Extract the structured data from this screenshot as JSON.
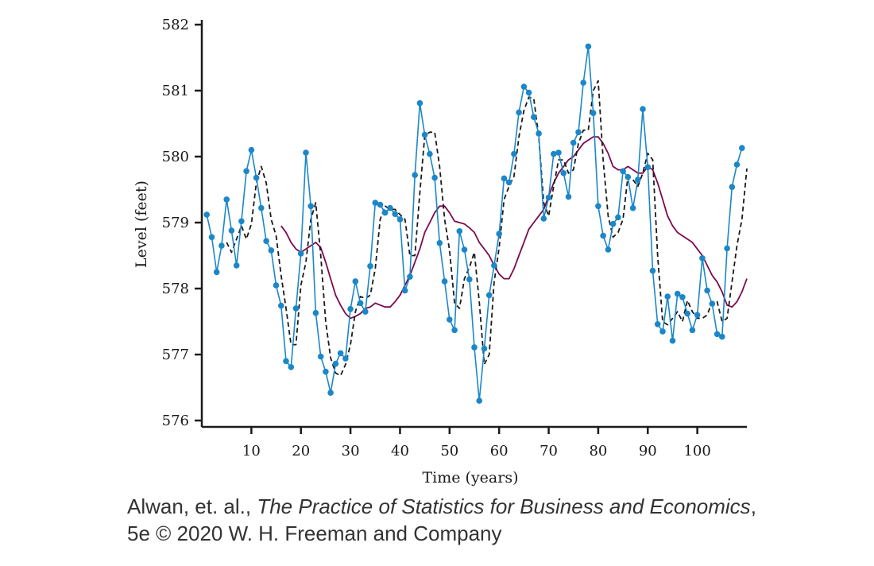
{
  "chart_data": {
    "type": "line",
    "title": "",
    "xlabel": "Time (years)",
    "ylabel": "Level (feet)",
    "xlim": [
      0,
      110
    ],
    "ylim": [
      576,
      582
    ],
    "xticks": [
      10,
      20,
      30,
      40,
      50,
      60,
      70,
      80,
      90,
      100
    ],
    "yticks": [
      576,
      577,
      578,
      579,
      580,
      581,
      582
    ],
    "grid": false,
    "legend": "none",
    "series": [
      {
        "style": "solid-markers",
        "color": "#1b87c9",
        "x": [
          1,
          2,
          3,
          4,
          5,
          6,
          7,
          8,
          9,
          10,
          11,
          12,
          13,
          14,
          15,
          16,
          17,
          18,
          19,
          20,
          21,
          22,
          23,
          24,
          25,
          26,
          27,
          28,
          29,
          30,
          31,
          32,
          33,
          34,
          35,
          36,
          37,
          38,
          39,
          40,
          41,
          42,
          43,
          44,
          45,
          46,
          47,
          48,
          49,
          50,
          51,
          52,
          53,
          54,
          55,
          56,
          57,
          58,
          59,
          60,
          61,
          62,
          63,
          64,
          65,
          66,
          67,
          68,
          69,
          70,
          71,
          72,
          73,
          74,
          75,
          76,
          77,
          78,
          79,
          80,
          81,
          82,
          83,
          84,
          85,
          86,
          87,
          88,
          89,
          90,
          91,
          92,
          93,
          94,
          95,
          96,
          97,
          98,
          99,
          100,
          101,
          102,
          103,
          104,
          105,
          106,
          107,
          108,
          109
        ],
        "y": [
          579.12,
          578.78,
          578.25,
          578.65,
          579.35,
          578.88,
          578.35,
          579.02,
          579.78,
          580.1,
          579.68,
          579.22,
          578.72,
          578.58,
          578.05,
          577.74,
          576.9,
          576.81,
          577.7,
          578.53,
          580.06,
          579.25,
          577.63,
          576.97,
          576.74,
          576.42,
          576.86,
          577.02,
          576.94,
          577.69,
          578.11,
          577.78,
          577.65,
          578.34,
          579.3,
          579.27,
          579.15,
          579.22,
          579.13,
          579.05,
          577.97,
          578.18,
          579.72,
          580.81,
          580.33,
          580.04,
          579.68,
          578.69,
          578.11,
          577.53,
          577.37,
          578.87,
          578.59,
          578.14,
          577.11,
          576.3,
          577.09,
          577.9,
          578.35,
          578.83,
          579.67,
          579.61,
          580.04,
          580.67,
          581.06,
          580.97,
          580.6,
          580.35,
          579.06,
          579.38,
          580.04,
          580.06,
          579.75,
          579.39,
          580.21,
          580.37,
          581.12,
          581.67,
          580.66,
          579.25,
          578.8,
          578.59,
          578.98,
          579.08,
          579.78,
          579.69,
          579.22,
          579.65,
          580.72,
          579.84,
          578.27,
          577.46,
          577.35,
          577.88,
          577.21,
          577.92,
          577.87,
          577.62,
          577.37,
          577.6,
          578.46,
          577.97,
          577.77,
          577.31,
          577.27,
          578.61,
          579.54,
          579.88,
          580.13
        ]
      },
      {
        "style": "dashed",
        "color": "#1a1a1a",
        "x": [
          5,
          6,
          7,
          8,
          9,
          10,
          11,
          12,
          13,
          14,
          15,
          16,
          17,
          18,
          19,
          20,
          21,
          22,
          23,
          24,
          25,
          26,
          27,
          28,
          29,
          30,
          31,
          32,
          33,
          34,
          35,
          36,
          37,
          38,
          39,
          40,
          41,
          42,
          43,
          44,
          45,
          46,
          47,
          48,
          49,
          50,
          51,
          52,
          53,
          54,
          55,
          56,
          57,
          58,
          59,
          60,
          61,
          62,
          63,
          64,
          65,
          66,
          67,
          68,
          69,
          70,
          71,
          72,
          73,
          74,
          75,
          76,
          77,
          78,
          79,
          80,
          81,
          82,
          83,
          84,
          85,
          86,
          87,
          88,
          89,
          90,
          91,
          92,
          93,
          94,
          95,
          96,
          97,
          98,
          99,
          100,
          101,
          102,
          103,
          104,
          105,
          106,
          107,
          108,
          109,
          110
        ],
        "y": [
          578.7,
          578.55,
          578.75,
          578.95,
          578.75,
          578.98,
          579.6,
          579.85,
          579.6,
          579.05,
          578.8,
          578.2,
          577.7,
          577.15,
          577.15,
          578.05,
          578.4,
          579.05,
          579.3,
          578.5,
          577.5,
          576.95,
          576.72,
          576.68,
          576.85,
          577.15,
          577.65,
          577.88,
          577.85,
          577.9,
          578.3,
          579.05,
          579.25,
          579.2,
          579.2,
          579.12,
          579.05,
          578.5,
          578.5,
          579.45,
          580.32,
          580.37,
          580.37,
          579.85,
          579.05,
          578.58,
          577.78,
          577.7,
          578.15,
          578.32,
          578.55,
          577.8,
          576.85,
          577.0,
          578.1,
          578.62,
          579.35,
          579.55,
          579.7,
          580.3,
          580.7,
          580.9,
          580.88,
          580.3,
          579.3,
          579.1,
          579.55,
          579.95,
          579.95,
          579.75,
          579.8,
          580.2,
          580.4,
          580.4,
          581.0,
          581.15,
          579.95,
          579.1,
          578.78,
          578.85,
          579.05,
          579.7,
          579.65,
          579.55,
          579.75,
          580.05,
          579.95,
          578.5,
          577.5,
          577.45,
          577.55,
          577.65,
          577.5,
          577.82,
          577.65,
          577.55,
          577.55,
          577.6,
          577.8,
          577.8,
          577.5,
          577.55,
          578.1,
          578.65,
          579.05,
          579.82
        ]
      },
      {
        "style": "solid",
        "color": "#7b0a4e",
        "x": [
          16,
          17,
          18,
          19,
          20,
          21,
          22,
          23,
          24,
          25,
          26,
          27,
          28,
          29,
          30,
          31,
          32,
          33,
          34,
          35,
          36,
          37,
          38,
          39,
          40,
          41,
          42,
          43,
          44,
          45,
          46,
          47,
          48,
          49,
          50,
          51,
          52,
          53,
          54,
          55,
          56,
          57,
          58,
          59,
          60,
          61,
          62,
          63,
          64,
          65,
          66,
          67,
          68,
          69,
          70,
          71,
          72,
          73,
          74,
          75,
          76,
          77,
          78,
          79,
          80,
          81,
          82,
          83,
          84,
          85,
          86,
          87,
          88,
          89,
          90,
          91,
          92,
          93,
          94,
          95,
          96,
          97,
          98,
          99,
          100,
          101,
          102,
          103,
          104,
          105,
          106,
          107,
          108,
          109,
          110
        ],
        "y": [
          578.95,
          578.85,
          578.7,
          578.6,
          578.55,
          578.6,
          578.65,
          578.7,
          578.62,
          578.4,
          578.15,
          577.9,
          577.75,
          577.62,
          577.55,
          577.58,
          577.62,
          577.7,
          577.72,
          577.78,
          577.75,
          577.72,
          577.72,
          577.8,
          577.9,
          578.05,
          578.2,
          578.4,
          578.6,
          578.85,
          579.0,
          579.15,
          579.25,
          579.25,
          579.15,
          579.02,
          579.0,
          578.98,
          578.92,
          578.85,
          578.7,
          578.6,
          578.5,
          578.35,
          578.22,
          578.15,
          578.15,
          578.3,
          578.5,
          578.7,
          578.9,
          579.0,
          579.1,
          579.2,
          579.4,
          579.6,
          579.75,
          579.85,
          579.95,
          580.0,
          580.1,
          580.2,
          580.25,
          580.3,
          580.3,
          580.2,
          580.05,
          579.85,
          579.8,
          579.8,
          579.85,
          579.8,
          579.75,
          579.75,
          579.85,
          579.8,
          579.6,
          579.35,
          579.1,
          578.95,
          578.85,
          578.8,
          578.75,
          578.7,
          578.6,
          578.5,
          578.35,
          578.2,
          578.1,
          577.95,
          577.75,
          577.72,
          577.8,
          577.95,
          578.15
        ]
      }
    ]
  },
  "credit": {
    "line1_prefix": "Alwan, et. al., ",
    "line1_title": "The Practice of Statistics for Business and Economics",
    "line1_suffix": ",",
    "line2": "5e © 2020 W. H. Freeman and Company"
  }
}
